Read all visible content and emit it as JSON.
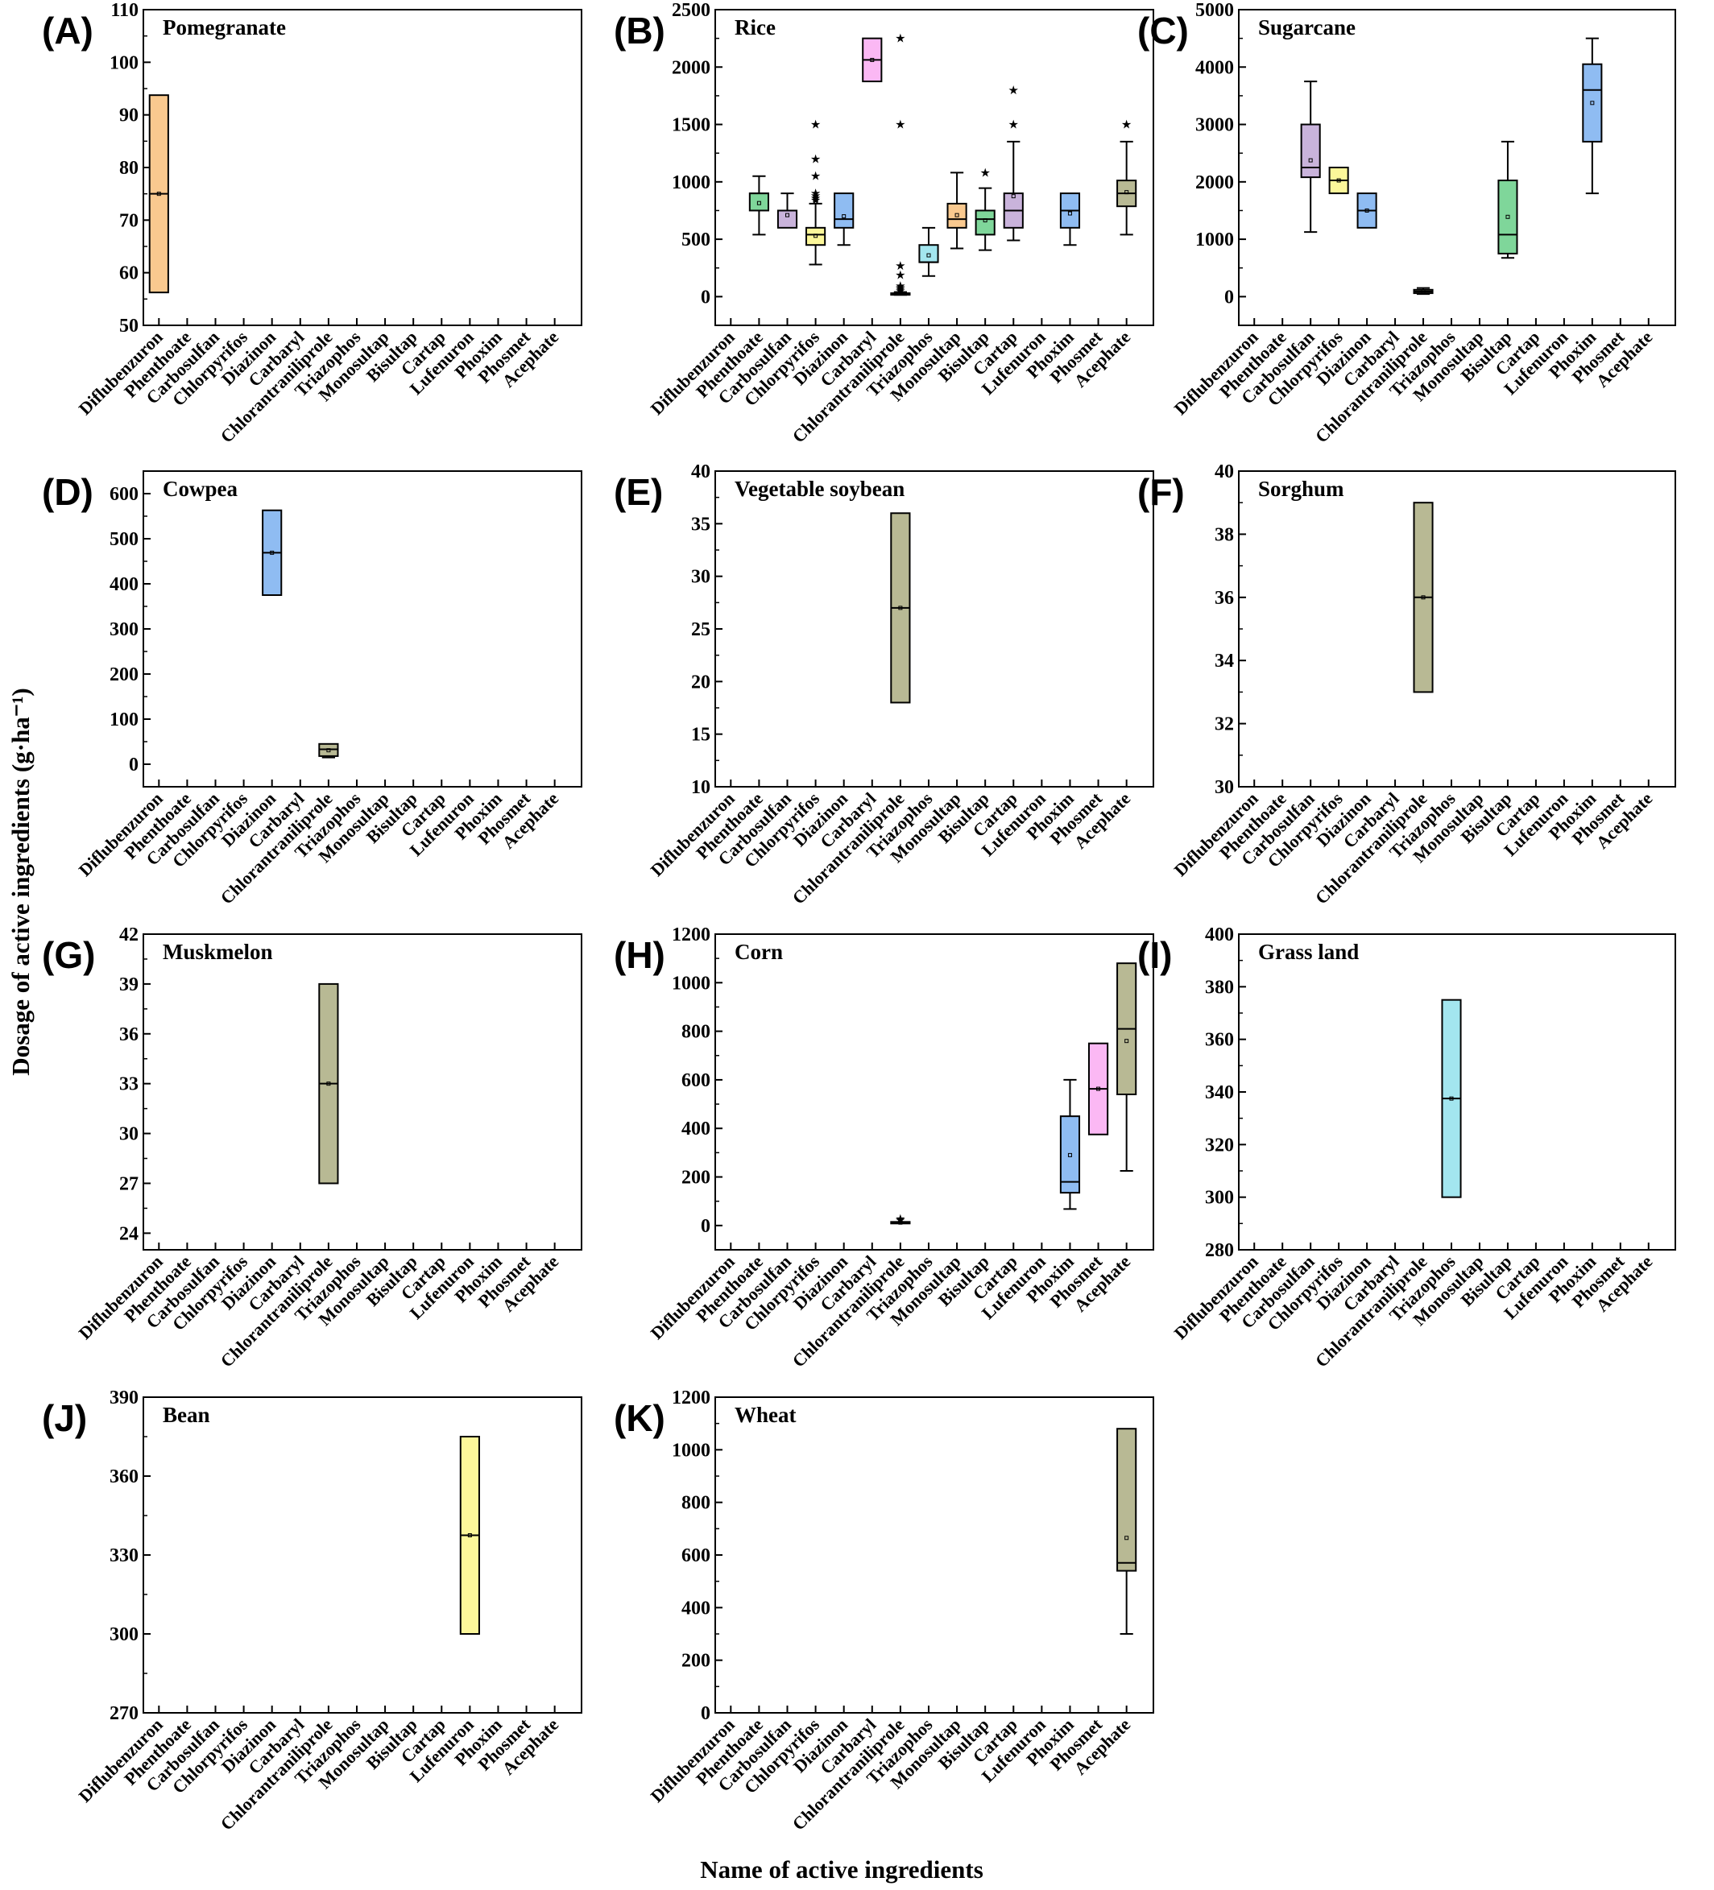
{
  "figure": {
    "ylabel": "Dosage of active ingredients (g·ha⁻¹)",
    "xlabel": "Name of active ingredients"
  },
  "chart_data": {
    "type": "box",
    "categories": [
      "Diflubenzuron",
      "Phenthoate",
      "Carbosulfan",
      "Chlorpyrifos",
      "Diazinon",
      "Carbaryl",
      "Chlorantraniliprole",
      "Triazophos",
      "Monosultap",
      "Bisultap",
      "Cartap",
      "Lufenuron",
      "Phoxim",
      "Phosmet",
      "Acephate"
    ],
    "xlabel": "Name of active ingredients",
    "ylabel": "Dosage of active ingredients (g·ha⁻¹)",
    "colors": {
      "Diflubenzuron": "#f9c98f",
      "Phenthoate": "#7fd69a",
      "Carbosulfan": "#c9b3db",
      "Chlorpyrifos": "#fcf79a",
      "Diazinon": "#8fbcf2",
      "Carbaryl": "#fbb8f4",
      "Chlorantraniliprole": "#b8b994",
      "Triazophos": "#a3e6ef",
      "Monosultap": "#f9c98f",
      "Bisultap": "#7fd69a",
      "Cartap": "#c9b3db",
      "Lufenuron": "#fcf79a",
      "Phoxim": "#8fbcf2",
      "Phosmet": "#fbb8f4",
      "Acephate": "#b8b994"
    },
    "panels": [
      {
        "letter": "(A)",
        "title": "Pomegranate",
        "ylim": [
          50,
          110
        ],
        "yticks": [
          50,
          60,
          70,
          80,
          90,
          100,
          110
        ],
        "minor": 5,
        "boxes": [
          {
            "category": "Diflubenzuron",
            "q1": 56.25,
            "median": 75,
            "q3": 93.75,
            "mean": 75,
            "outliers": []
          }
        ]
      },
      {
        "letter": "(B)",
        "title": "Rice",
        "ylim": [
          -250,
          2500
        ],
        "yticks": [
          0,
          500,
          1000,
          1500,
          2000,
          2500
        ],
        "minor": 250,
        "boxes": [
          {
            "category": "Phenthoate",
            "q1": 750,
            "median": 900,
            "q3": 900,
            "mean": 815,
            "wlo": 540,
            "whi": 1050,
            "outliers": []
          },
          {
            "category": "Carbosulfan",
            "q1": 600,
            "median": 750,
            "q3": 750,
            "mean": 710,
            "wlo": 600,
            "whi": 900,
            "outliers": []
          },
          {
            "category": "Chlorpyrifos",
            "q1": 450,
            "median": 540,
            "q3": 600,
            "mean": 530,
            "wlo": 280,
            "whi": 810,
            "outliers": [
              840,
              860,
              880,
              900,
              1050,
              1200,
              1500
            ]
          },
          {
            "category": "Diazinon",
            "q1": 600,
            "median": 675,
            "q3": 900,
            "mean": 700,
            "wlo": 450,
            "whi": 900,
            "outliers": []
          },
          {
            "category": "Carbaryl",
            "q1": 1875,
            "median": 2062,
            "q3": 2250,
            "mean": 2062,
            "outliers": []
          },
          {
            "category": "Chlorantraniliprole",
            "q1": 20,
            "median": 25,
            "q3": 30,
            "mean": 30,
            "wlo": 15,
            "whi": 40,
            "outliers": [
              50,
              65,
              80,
              95,
              190,
              270,
              1500,
              2250
            ]
          },
          {
            "category": "Triazophos",
            "q1": 300,
            "median": 300,
            "q3": 450,
            "mean": 360,
            "wlo": 180,
            "whi": 600,
            "outliers": []
          },
          {
            "category": "Monosultap",
            "q1": 600,
            "median": 675,
            "q3": 810,
            "mean": 710,
            "wlo": 420,
            "whi": 1080,
            "outliers": []
          },
          {
            "category": "Bisultap",
            "q1": 540,
            "median": 675,
            "q3": 750,
            "mean": 665,
            "wlo": 405,
            "whi": 945,
            "outliers": [
              1080
            ]
          },
          {
            "category": "Cartap",
            "q1": 600,
            "median": 750,
            "q3": 900,
            "mean": 875,
            "wlo": 490,
            "whi": 1350,
            "outliers": [
              1500,
              1800
            ]
          },
          {
            "category": "Phoxim",
            "q1": 600,
            "median": 750,
            "q3": 900,
            "mean": 725,
            "wlo": 450,
            "whi": 900,
            "outliers": []
          },
          {
            "category": "Acephate",
            "q1": 787,
            "median": 900,
            "q3": 1012,
            "mean": 910,
            "wlo": 540,
            "whi": 1350,
            "outliers": [
              1500
            ]
          }
        ]
      },
      {
        "letter": "(C)",
        "title": "Sugarcane",
        "ylim": [
          -500,
          5000
        ],
        "yticks": [
          0,
          1000,
          2000,
          3000,
          4000,
          5000
        ],
        "minor": 500,
        "boxes": [
          {
            "category": "Carbosulfan",
            "q1": 2080,
            "median": 2250,
            "q3": 3000,
            "mean": 2375,
            "wlo": 1125,
            "whi": 3750,
            "outliers": []
          },
          {
            "category": "Chlorpyrifos",
            "q1": 1800,
            "median": 2025,
            "q3": 2250,
            "mean": 2025,
            "outliers": []
          },
          {
            "category": "Diazinon",
            "q1": 1200,
            "median": 1500,
            "q3": 1800,
            "mean": 1500,
            "outliers": []
          },
          {
            "category": "Chlorantraniliprole",
            "q1": 60,
            "median": 90,
            "q3": 120,
            "mean": 90,
            "wlo": 45,
            "whi": 150,
            "outliers": []
          },
          {
            "category": "Bisultap",
            "q1": 750,
            "median": 1080,
            "q3": 2025,
            "mean": 1390,
            "wlo": 675,
            "whi": 2700,
            "outliers": []
          },
          {
            "category": "Phoxim",
            "q1": 2700,
            "median": 3600,
            "q3": 4050,
            "mean": 3375,
            "wlo": 1800,
            "whi": 4500,
            "outliers": []
          }
        ]
      },
      {
        "letter": "(D)",
        "title": "Cowpea",
        "ylim": [
          -50,
          650
        ],
        "yticks": [
          0,
          100,
          200,
          300,
          400,
          500,
          600
        ],
        "minor": 50,
        "boxes": [
          {
            "category": "Diazinon",
            "q1": 375,
            "median": 469,
            "q3": 563,
            "mean": 469,
            "outliers": []
          },
          {
            "category": "Chlorantraniliprole",
            "q1": 18,
            "median": 33,
            "q3": 45,
            "mean": 31,
            "wlo": 15,
            "whi": 18,
            "outliers": []
          }
        ]
      },
      {
        "letter": "(E)",
        "title": "Vegetable soybean",
        "ylim": [
          10,
          40
        ],
        "yticks": [
          10,
          15,
          20,
          25,
          30,
          35,
          40
        ],
        "minor": 2.5,
        "boxes": [
          {
            "category": "Chlorantraniliprole",
            "q1": 18,
            "median": 27,
            "q3": 36,
            "mean": 27,
            "outliers": []
          }
        ]
      },
      {
        "letter": "(F)",
        "title": "Sorghum",
        "ylim": [
          30,
          40
        ],
        "yticks": [
          30,
          32,
          34,
          36,
          38,
          40
        ],
        "minor": 1,
        "boxes": [
          {
            "category": "Chlorantraniliprole",
            "q1": 33,
            "median": 36,
            "q3": 39,
            "mean": 36,
            "outliers": []
          }
        ]
      },
      {
        "letter": "(G)",
        "title": "Muskmelon",
        "ylim": [
          23,
          42
        ],
        "yticks": [
          24,
          27,
          30,
          33,
          36,
          39,
          42
        ],
        "minor": 1.5,
        "boxes": [
          {
            "category": "Chlorantraniliprole",
            "q1": 27,
            "median": 33,
            "q3": 39,
            "mean": 33,
            "outliers": []
          }
        ]
      },
      {
        "letter": "(H)",
        "title": "Corn",
        "ylim": [
          -100,
          1200
        ],
        "yticks": [
          0,
          200,
          400,
          600,
          800,
          1000,
          1200
        ],
        "minor": 100,
        "boxes": [
          {
            "category": "Chlorantraniliprole",
            "q1": 9,
            "median": 12,
            "q3": 15,
            "mean": 12,
            "wlo": 9,
            "whi": 15,
            "outliers": [
              22,
              28
            ]
          },
          {
            "category": "Phoxim",
            "q1": 135,
            "median": 180,
            "q3": 450,
            "mean": 290,
            "wlo": 68,
            "whi": 600,
            "outliers": []
          },
          {
            "category": "Phosmet",
            "q1": 375,
            "median": 563,
            "q3": 750,
            "mean": 563,
            "outliers": []
          },
          {
            "category": "Acephate",
            "q1": 540,
            "median": 810,
            "q3": 1080,
            "mean": 760,
            "wlo": 225,
            "whi": 1080,
            "outliers": []
          }
        ]
      },
      {
        "letter": "(I)",
        "title": "Grass land",
        "ylim": [
          280,
          400
        ],
        "yticks": [
          280,
          300,
          320,
          340,
          360,
          380,
          400
        ],
        "minor": 10,
        "boxes": [
          {
            "category": "Triazophos",
            "q1": 300,
            "median": 337.5,
            "q3": 375,
            "mean": 337.5,
            "outliers": []
          }
        ]
      },
      {
        "letter": "(J)",
        "title": "Bean",
        "ylim": [
          270,
          390
        ],
        "yticks": [
          270,
          300,
          330,
          360,
          390
        ],
        "minor": 15,
        "boxes": [
          {
            "category": "Lufenuron",
            "q1": 300,
            "median": 337.5,
            "q3": 375,
            "mean": 337.5,
            "outliers": []
          }
        ]
      },
      {
        "letter": "(K)",
        "title": "Wheat",
        "ylim": [
          0,
          1200
        ],
        "yticks": [
          0,
          200,
          400,
          600,
          800,
          1000,
          1200
        ],
        "minor": 100,
        "boxes": [
          {
            "category": "Acephate",
            "q1": 540,
            "median": 570,
            "q3": 1080,
            "mean": 665,
            "wlo": 300,
            "whi": 1080,
            "outliers": []
          }
        ]
      }
    ]
  }
}
